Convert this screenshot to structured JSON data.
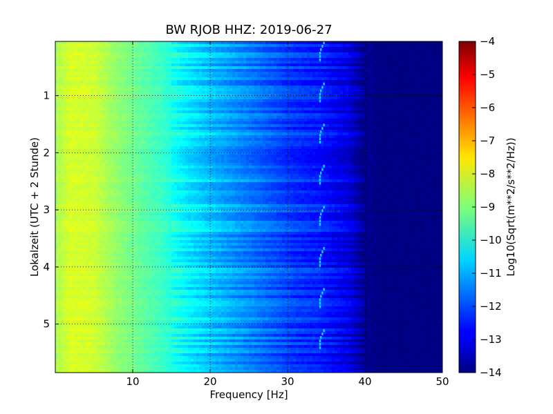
{
  "chart_data": {
    "type": "heatmap",
    "title": "BW RJOB HHZ: 2019-06-27",
    "xlabel": "Frequency [Hz]",
    "ylabel": "Lokalzeit (UTC + 2 Stunde)",
    "xlim": [
      0,
      50
    ],
    "ylim": [
      0.05,
      5.85
    ],
    "y_inverted": true,
    "x_ticks": [
      10,
      20,
      30,
      40,
      50
    ],
    "x_tick_labels": [
      "10",
      "20",
      "30",
      "40",
      "50"
    ],
    "y_ticks": [
      1,
      2,
      3,
      4,
      5
    ],
    "y_tick_labels": [
      "1",
      "2",
      "3",
      "4",
      "5"
    ],
    "grid": true,
    "colormap": "jet",
    "colorbar": {
      "label": "Log10(Sqrt(m**2/s**2/Hz))",
      "vmin": -14,
      "vmax": -4,
      "ticks": [
        -4,
        -5,
        -6,
        -7,
        -8,
        -9,
        -10,
        -11,
        -12,
        -13,
        -14
      ],
      "tick_labels": [
        "−4",
        "−5",
        "−6",
        "−7",
        "−8",
        "−9",
        "−10",
        "−11",
        "−12",
        "−13",
        "−14"
      ]
    },
    "spectrum_profile": {
      "frequency_hz": [
        0,
        2,
        5,
        8,
        10,
        14,
        17,
        20,
        24,
        28,
        31,
        34,
        36,
        38,
        40,
        42,
        50
      ],
      "level": [
        -8.6,
        -8.1,
        -8.2,
        -8.8,
        -9.1,
        -9.7,
        -10.3,
        -10.8,
        -11.3,
        -11.8,
        -12.2,
        -12.4,
        -12.7,
        -13.0,
        -13.8,
        -14.0,
        -14.0
      ]
    },
    "feature_line_hz": 34.3
  }
}
